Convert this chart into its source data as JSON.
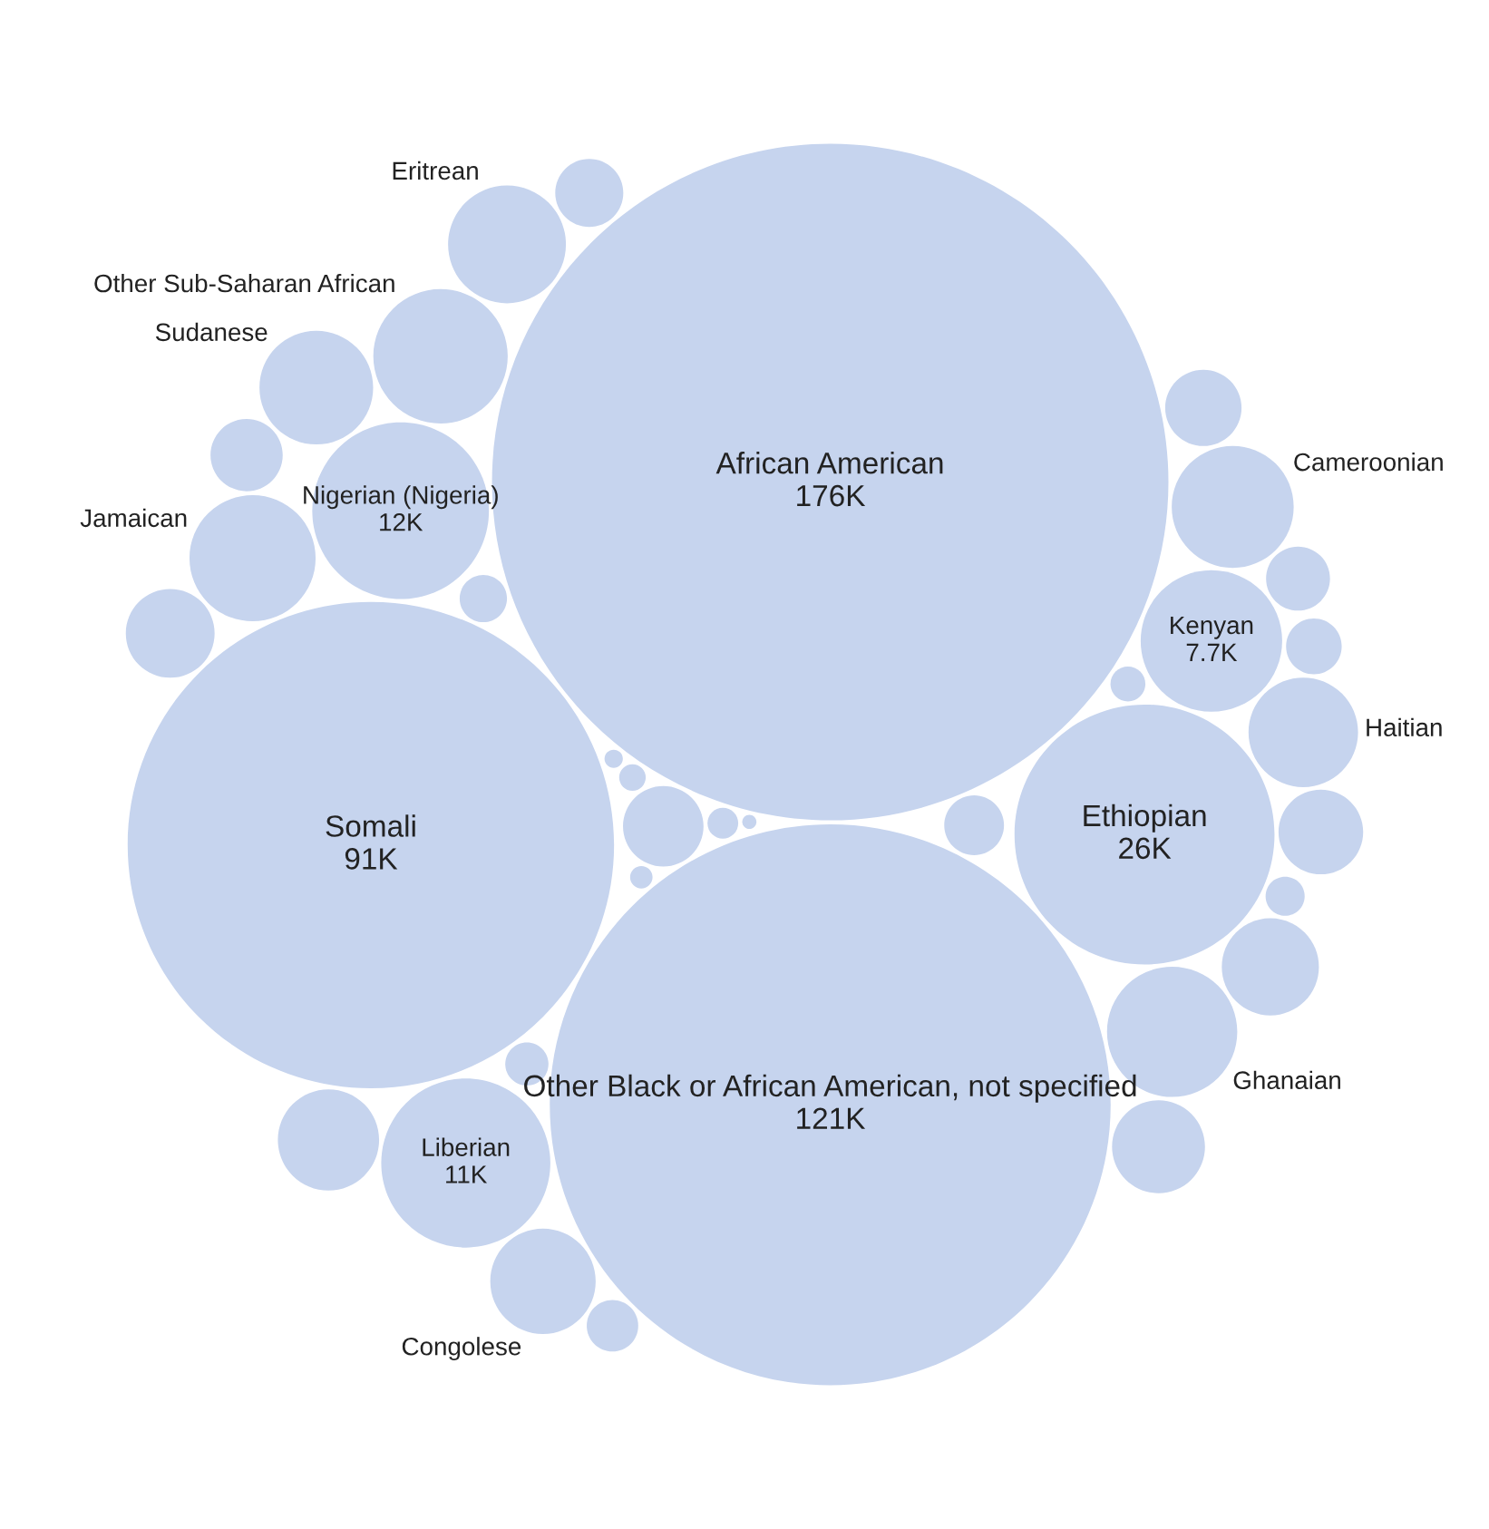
{
  "chart_data": {
    "type": "other",
    "categories": [
      "African American",
      "Other Black or African American, not specified",
      "Somali",
      "Ethiopian",
      "Nigerian (Nigeria)",
      "Liberian",
      "Kenyan",
      "Other Sub-Saharan African",
      "Ghanaian",
      "Jamaican",
      "Cameroonian",
      "Eritrean",
      "Sudanese",
      "Haitian",
      "Congolese",
      null,
      null,
      null,
      null,
      null,
      null,
      null,
      null,
      null,
      null,
      null,
      null,
      null,
      null,
      null,
      null,
      null,
      null,
      null,
      null,
      null,
      null
    ],
    "values": [
      176,
      121,
      91,
      26,
      12,
      11,
      7.7,
      null,
      null,
      null,
      null,
      null,
      null,
      null,
      null,
      null,
      null,
      null,
      null,
      null,
      null,
      null,
      null,
      null,
      null,
      null,
      null,
      null,
      null,
      null,
      null,
      null,
      null,
      null,
      null,
      null,
      null
    ],
    "value_labels": [
      "176K",
      "121K",
      "91K",
      "26K",
      "12K",
      "11K",
      "7.7K",
      null,
      null,
      null,
      null,
      null,
      null,
      null,
      null,
      null,
      null,
      null,
      null,
      null,
      null,
      null,
      null,
      null,
      null,
      null,
      null,
      null,
      null,
      null,
      null,
      null,
      null,
      null,
      null,
      null,
      null
    ],
    "color": "#c6d4ee"
  }
}
